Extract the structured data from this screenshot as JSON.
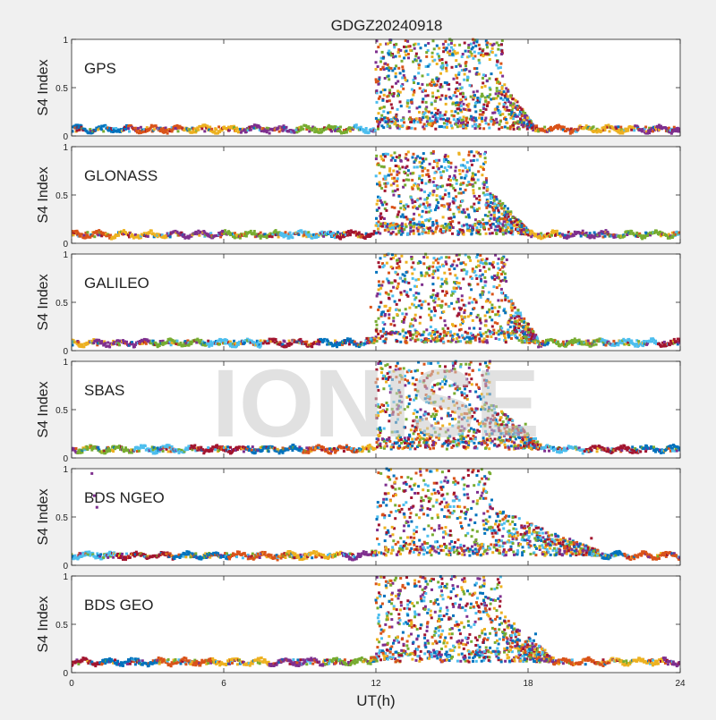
{
  "figure": {
    "title": "GDGZ20240918",
    "watermark": "IONISE",
    "xlabel": "UT(h)",
    "ylabel": "S4 Index"
  },
  "chart_data": {
    "type": "scatter",
    "title": "GDGZ20240918",
    "xlabel": "UT(h)",
    "ylabel": "S4 Index",
    "xlim": [
      0,
      24
    ],
    "ylim": [
      0,
      1
    ],
    "xticks": [
      0,
      6,
      12,
      18,
      24
    ],
    "yticks": [
      0,
      0.5,
      1
    ],
    "series_colors": [
      "#0072BD",
      "#D95319",
      "#EDB120",
      "#7E2F8E",
      "#77AC30",
      "#4DBEEE",
      "#A2142F"
    ],
    "panels": [
      {
        "label": "GPS",
        "quiet_level": 0.07,
        "active_window": [
          12.0,
          18.2
        ],
        "peak_window": [
          12.0,
          17.0
        ],
        "peak_s4": 1.0,
        "series": [
          {
            "color": "#0072BD",
            "points": [
              [
                12.5,
                0.62
              ],
              [
                13.2,
                0.88
              ],
              [
                14.8,
                0.55
              ],
              [
                15.9,
                0.42
              ],
              [
                16.8,
                0.3
              ],
              [
                17.5,
                0.22
              ]
            ]
          },
          {
            "color": "#D95319",
            "points": [
              [
                12.1,
                0.92
              ],
              [
                12.6,
                0.7
              ],
              [
                13.4,
                0.35
              ],
              [
                14.0,
                0.82
              ],
              [
                15.2,
                0.6
              ]
            ]
          },
          {
            "color": "#77AC30",
            "points": [
              [
                12.8,
                0.95
              ],
              [
                13.6,
                0.78
              ],
              [
                14.3,
                0.9
              ],
              [
                17.6,
                0.15
              ]
            ]
          },
          {
            "color": "#4DBEEE",
            "points": [
              [
                14.6,
                0.72
              ],
              [
                15.4,
                0.5
              ],
              [
                16.1,
                0.38
              ],
              [
                16.9,
                0.25
              ]
            ]
          }
        ]
      },
      {
        "label": "GLONASS",
        "quiet_level": 0.09,
        "active_window": [
          12.0,
          18.0
        ],
        "peak_window": [
          12.0,
          16.4
        ],
        "peak_s4": 0.95,
        "series": [
          {
            "color": "#EDB120",
            "points": [
              [
                12.2,
                0.9
              ],
              [
                12.7,
                0.75
              ],
              [
                13.5,
                0.6
              ]
            ]
          },
          {
            "color": "#7E2F8E",
            "points": [
              [
                13.0,
                0.85
              ],
              [
                13.8,
                0.55
              ],
              [
                15.1,
                0.7
              ]
            ]
          },
          {
            "color": "#77AC30",
            "points": [
              [
                14.4,
                0.45
              ],
              [
                15.6,
                0.6
              ],
              [
                16.0,
                0.35
              ]
            ]
          },
          {
            "color": "#4DBEEE",
            "points": [
              [
                15.5,
                0.8
              ],
              [
                16.3,
                0.5
              ]
            ]
          }
        ]
      },
      {
        "label": "GALILEO",
        "quiet_level": 0.08,
        "active_window": [
          11.6,
          18.4
        ],
        "peak_window": [
          12.0,
          17.2
        ],
        "peak_s4": 1.0,
        "series": [
          {
            "color": "#A2142F",
            "points": [
              [
                12.6,
                0.95
              ],
              [
                13.3,
                0.7
              ],
              [
                14.1,
                0.85
              ],
              [
                16.6,
                0.25
              ]
            ]
          },
          {
            "color": "#D95319",
            "points": [
              [
                11.8,
                0.45
              ],
              [
                12.4,
                0.6
              ],
              [
                13.9,
                0.9
              ]
            ]
          },
          {
            "color": "#4DBEEE",
            "points": [
              [
                14.5,
                0.95
              ],
              [
                15.2,
                0.75
              ],
              [
                15.8,
                0.5
              ]
            ]
          },
          {
            "color": "#77AC30",
            "points": [
              [
                16.2,
                0.6
              ],
              [
                17.5,
                0.3
              ],
              [
                18.2,
                0.2
              ]
            ]
          }
        ]
      },
      {
        "label": "SBAS",
        "quiet_level": 0.09,
        "active_window": [
          12.0,
          18.5
        ],
        "peak_window": [
          12.0,
          16.5
        ],
        "peak_s4": 1.0,
        "series": [
          {
            "color": "#4DBEEE",
            "points": [
              [
                12.3,
                0.85
              ],
              [
                13.5,
                0.6
              ],
              [
                15.0,
                0.75
              ],
              [
                18.3,
                0.2
              ]
            ]
          },
          {
            "color": "#D95319",
            "points": [
              [
                12.8,
                0.95
              ],
              [
                14.2,
                0.7
              ],
              [
                15.8,
                0.5
              ]
            ]
          },
          {
            "color": "#77AC30",
            "points": [
              [
                13.2,
                0.4
              ],
              [
                14.8,
                0.9
              ],
              [
                16.3,
                0.55
              ],
              [
                17.9,
                0.35
              ]
            ]
          },
          {
            "color": "#A2142F",
            "points": [
              [
                12.1,
                0.7
              ],
              [
                13.9,
                0.8
              ],
              [
                15.4,
                0.65
              ]
            ]
          }
        ]
      },
      {
        "label": "BDS NGEO",
        "quiet_level": 0.1,
        "active_window": [
          11.8,
          20.8
        ],
        "peak_window": [
          12.0,
          16.6
        ],
        "peak_s4": 1.0,
        "series": [
          {
            "color": "#7E2F8E",
            "points": [
              [
                0.8,
                0.95
              ],
              [
                0.9,
                0.72
              ],
              [
                1.0,
                0.6
              ],
              [
                13.1,
                0.85
              ],
              [
                17.0,
                0.3
              ],
              [
                18.8,
                0.22
              ]
            ]
          },
          {
            "color": "#77AC30",
            "points": [
              [
                12.2,
                0.95
              ],
              [
                13.8,
                0.7
              ],
              [
                14.9,
                0.5
              ],
              [
                16.0,
                0.35
              ]
            ]
          },
          {
            "color": "#D95319",
            "points": [
              [
                12.6,
                0.55
              ],
              [
                14.3,
                0.85
              ],
              [
                15.5,
                0.6
              ]
            ]
          },
          {
            "color": "#A2142F",
            "points": [
              [
                20.5,
                0.28
              ],
              [
                19.6,
                0.15
              ]
            ]
          }
        ]
      },
      {
        "label": "BDS GEO",
        "quiet_level": 0.11,
        "active_window": [
          11.8,
          19.0
        ],
        "peak_window": [
          12.0,
          17.0
        ],
        "peak_s4": 1.0,
        "series": [
          {
            "color": "#0072BD",
            "points": [
              [
                12.0,
                0.75
              ],
              [
                12.4,
                0.9
              ],
              [
                14.6,
                0.55
              ],
              [
                18.3,
                0.4
              ]
            ]
          },
          {
            "color": "#7E2F8E",
            "points": [
              [
                12.9,
                0.85
              ],
              [
                13.7,
                0.6
              ],
              [
                15.3,
                0.7
              ],
              [
                17.2,
                0.3
              ]
            ]
          },
          {
            "color": "#EDB120",
            "points": [
              [
                13.4,
                0.5
              ],
              [
                14.9,
                0.4
              ],
              [
                16.4,
                0.6
              ],
              [
                17.6,
                0.25
              ]
            ]
          },
          {
            "color": "#D95319",
            "points": [
              [
                12.6,
                0.95
              ],
              [
                15.8,
                0.8
              ],
              [
                16.7,
                0.45
              ]
            ]
          }
        ]
      }
    ]
  }
}
